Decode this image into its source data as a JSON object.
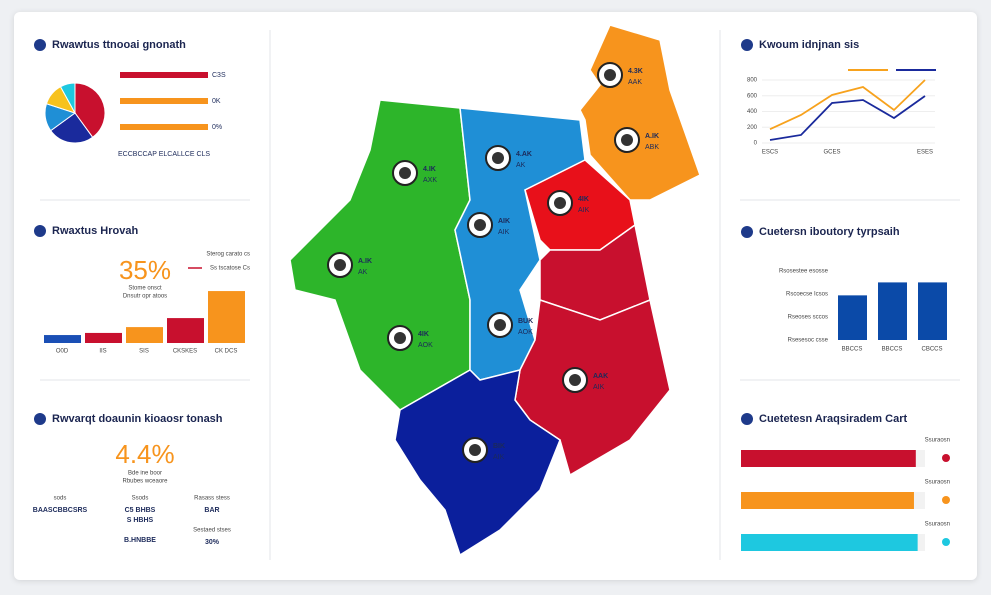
{
  "panels": {
    "share": {
      "title": "Rwawtus ttnooai gnonath",
      "pie": {
        "values": [
          40,
          25,
          15,
          12,
          8
        ],
        "colors": [
          "#c8102e",
          "#1a2a9c",
          "#1f8fd6",
          "#f7c21d",
          "#1ec8e0"
        ]
      },
      "bars": [
        {
          "label": "C3S",
          "color": "#c8102e"
        },
        {
          "label": "0K",
          "color": "#f7941d"
        },
        {
          "label": "0%",
          "color": "#f7941d"
        }
      ],
      "note": "ECCBCCAP ELCALLCE CLS"
    },
    "growth": {
      "title": "Rwaxtus Hrovah",
      "kpi": "35%",
      "kpi_sub": [
        "Stome onsct",
        "Dnsutr opr atoos"
      ],
      "legend": [
        "Sterog carato cs",
        "Ss tscatose Cs"
      ],
      "categories": [
        "O0D",
        "IIS",
        "SIS",
        "CKSKES",
        "CK DCS"
      ],
      "values": [
        15,
        19,
        30,
        47,
        98
      ],
      "colors": [
        "#1a4fb5",
        "#c8102e",
        "#f7941d",
        "#c8102e",
        "#f7941d"
      ],
      "ylim": [
        0,
        100
      ]
    },
    "rate": {
      "title": "Rwvarqt doaunin kioaosr tonash",
      "kpi": "4.4%",
      "kpi_sub": [
        "Bde ine boor",
        "Rbubes wceaore"
      ],
      "stats": [
        {
          "label": "sods",
          "value": "BAASCBBCSRS"
        },
        {
          "label": "Ssods",
          "value": "C5 BHBS"
        },
        {
          "label": "Rasass stess",
          "value": "BAR"
        },
        {
          "label": "",
          "value": "S HBHS"
        },
        {
          "label": "",
          "value": "B.HNBBE"
        },
        {
          "label": "Sestaed stses",
          "value": "30%"
        }
      ]
    },
    "trend": {
      "title": "Kwoum idnjnan sis",
      "categories": [
        "ESCS",
        null,
        "GCES",
        null,
        null,
        "ESES"
      ],
      "ylim": [
        0,
        800
      ],
      "yticks": [
        0,
        200,
        400,
        600,
        800
      ],
      "series": [
        {
          "color": "#f7a21d",
          "values": [
            175,
            356,
            610,
            711,
            419,
            800
          ]
        },
        {
          "color": "#1a2a9c",
          "values": [
            38,
            102,
            508,
            546,
            317,
            597
          ]
        }
      ]
    },
    "columns": {
      "title": "Cuetersn iboutory tyrpsaih",
      "rows": [
        "Rsosestee esosse",
        "Rscoecse Icsos",
        "Rseoses sccos",
        "Rsesesoc csse"
      ],
      "categories": [
        "BBCCS",
        "BBCCS",
        "CBCCS"
      ],
      "values": [
        62,
        80,
        80
      ],
      "ylim": [
        0,
        100
      ],
      "color": "#0b4aa8"
    },
    "progress": {
      "title": "Cuetetesn Araqsiradem Cart",
      "labels": [
        "Ssuraosn",
        "Ssuraosn",
        "Ssuraosn"
      ],
      "values": [
        95,
        94,
        96
      ],
      "xlim": [
        0,
        100
      ],
      "colors": [
        "#c8102e",
        "#f7941d",
        "#1ec8e0"
      ]
    }
  },
  "map": {
    "regions": [
      {
        "label": "4.IK",
        "sublabel": "AXK"
      },
      {
        "label": "A.IK",
        "sublabel": "AK"
      },
      {
        "label": "4IK",
        "sublabel": "AOK"
      },
      {
        "label": "4.AK",
        "sublabel": "AK"
      },
      {
        "label": "AIK",
        "sublabel": "AIK"
      },
      {
        "label": "BUK",
        "sublabel": "AOK"
      },
      {
        "label": "4.3K",
        "sublabel": "AAK"
      },
      {
        "label": "A.IK",
        "sublabel": "ABK"
      },
      {
        "label": "4IK",
        "sublabel": "AIK"
      },
      {
        "label": "AAK",
        "sublabel": "AIK"
      },
      {
        "label": "BIK",
        "sublabel": "AIK"
      }
    ]
  }
}
